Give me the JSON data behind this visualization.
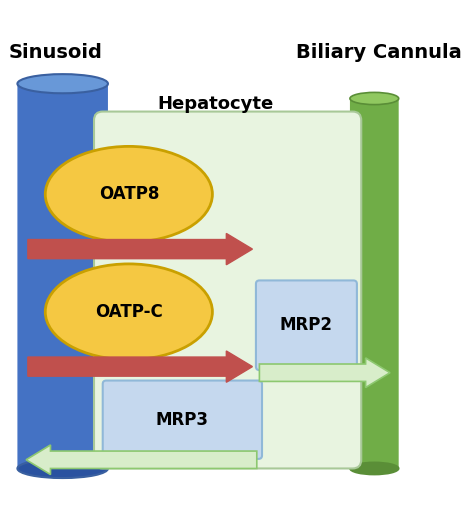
{
  "sinusoid_label": "Sinusoid",
  "biliary_label": "Biliary Cannula",
  "hepatocyte_label": "Hepatocyte",
  "oatp8_label": "OATP8",
  "oatpc_label": "OATP-C",
  "mrp3_label": "MRP3",
  "mrp2_label": "MRP2",
  "bg_color": "#ffffff",
  "sinusoid_color": "#4472C4",
  "sinusoid_top_color": "#6898D8",
  "sinusoid_bot_color": "#2A52A0",
  "biliary_color": "#70AD47",
  "biliary_top_color": "#90C860",
  "biliary_bot_color": "#5A8E37",
  "hepatocyte_fill": "#E8F4E0",
  "hepatocyte_edge": "#A8C898",
  "oatp_fill": "#F5C842",
  "oatp_edge": "#C9A000",
  "mrp3_fill": "#C5D8EE",
  "mrp3_edge": "#90B8D8",
  "mrp2_fill": "#C5D8EE",
  "mrp2_edge": "#90B8D8",
  "arrow_red": "#C0504D",
  "arrow_green_fill": "#D8EDCA",
  "arrow_green_edge": "#8DC870"
}
